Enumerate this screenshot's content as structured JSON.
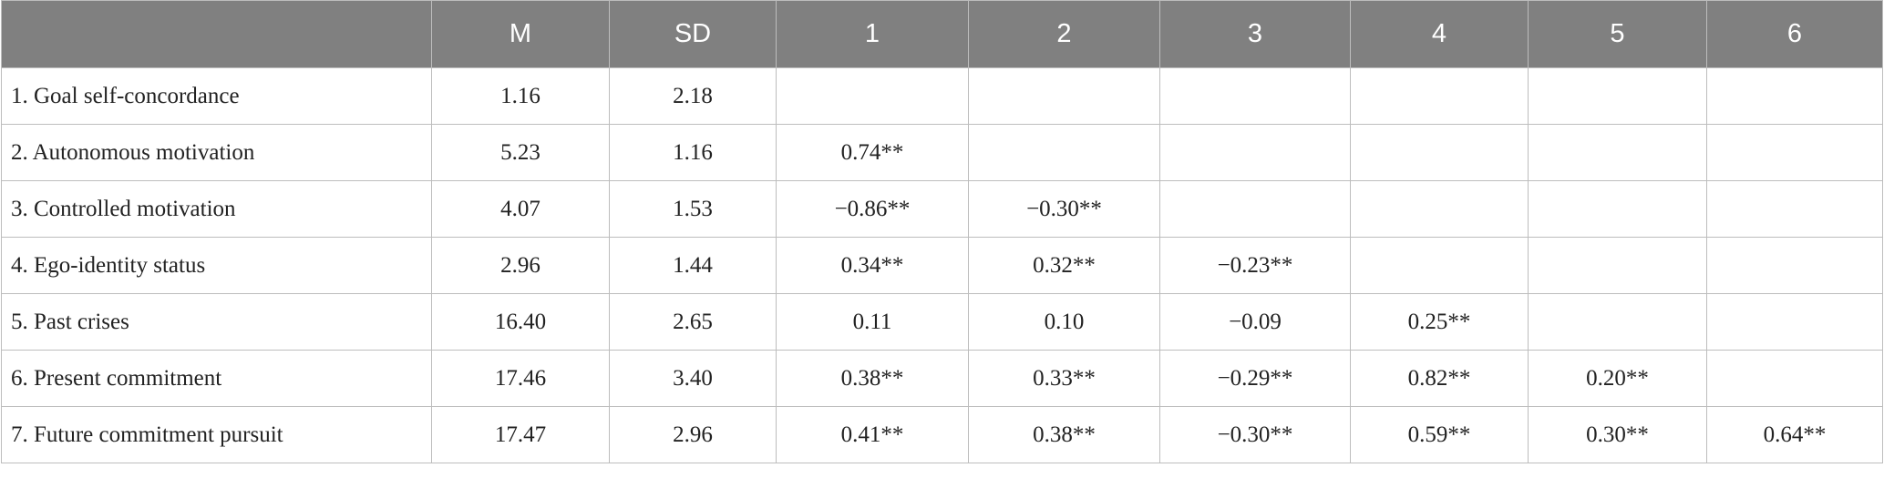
{
  "table": {
    "columns": [
      "M",
      "SD",
      "1",
      "2",
      "3",
      "4",
      "5",
      "6"
    ],
    "rows": [
      {
        "label": "1. Goal self-concordance",
        "cells": [
          "1.16",
          "2.18"
        ]
      },
      {
        "label": "2. Autonomous motivation",
        "cells": [
          "5.23",
          "1.16",
          "0.74**"
        ]
      },
      {
        "label": "3. Controlled motivation",
        "cells": [
          "4.07",
          "1.53",
          "−0.86**",
          "−0.30**"
        ]
      },
      {
        "label": "4. Ego-identity status",
        "cells": [
          "2.96",
          "1.44",
          "0.34**",
          "0.32**",
          "−0.23**"
        ]
      },
      {
        "label": "5. Past crises",
        "cells": [
          "16.40",
          "2.65",
          "0.11",
          "0.10",
          "−0.09",
          "0.25**"
        ]
      },
      {
        "label": "6. Present commitment",
        "cells": [
          "17.46",
          "3.40",
          "0.38**",
          "0.33**",
          "−0.29**",
          "0.82**",
          "0.20**"
        ]
      },
      {
        "label": "7. Future commitment pursuit",
        "cells": [
          "17.47",
          "2.96",
          "0.41**",
          "0.38**",
          "−0.30**",
          "0.59**",
          "0.30**",
          "0.64**"
        ]
      }
    ]
  }
}
